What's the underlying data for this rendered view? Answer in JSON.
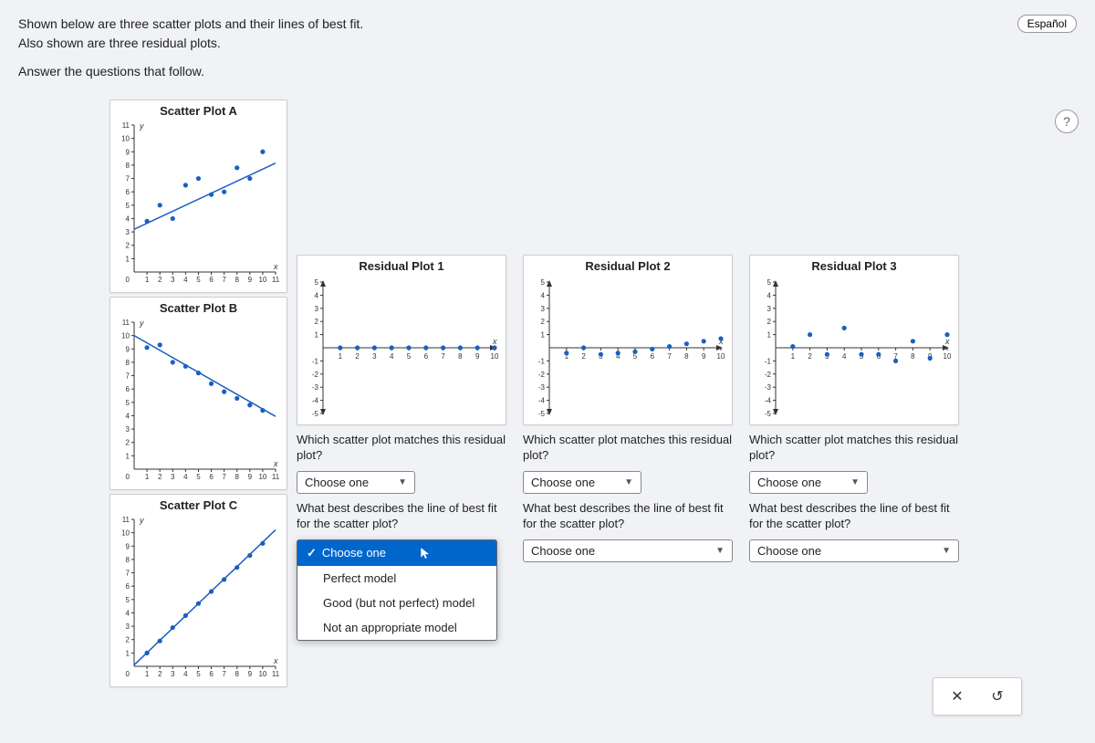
{
  "header": {
    "line1": "Shown below are three scatter plots and their lines of best fit.",
    "line2": "Also shown are three residual plots.",
    "line3": "Answer the questions that follow.",
    "espanol": "Español",
    "help": "?"
  },
  "style": {
    "dot_color": "#1b5fbf",
    "dot_radius": 2.6,
    "line_color": "#1b5fbf",
    "axis_color": "#333333",
    "axis_fontsize": 8,
    "title_fontsize": 13,
    "grid_color": "#e9e9e9",
    "background": "#ffffff"
  },
  "scatter": {
    "A": {
      "title": "Scatter Plot A",
      "xlim": [
        0,
        11
      ],
      "ylim": [
        0,
        11
      ],
      "points": [
        [
          1,
          3.8
        ],
        [
          2,
          5.0
        ],
        [
          3,
          4.0
        ],
        [
          4,
          6.5
        ],
        [
          5,
          7.0
        ],
        [
          6,
          5.8
        ],
        [
          7,
          6.0
        ],
        [
          8,
          7.8
        ],
        [
          9,
          7.0
        ],
        [
          10,
          9.0
        ]
      ],
      "fit": {
        "m": 0.45,
        "b": 3.2
      }
    },
    "B": {
      "title": "Scatter Plot B",
      "xlim": [
        0,
        11
      ],
      "ylim": [
        0,
        11
      ],
      "points": [
        [
          1,
          9.1
        ],
        [
          2,
          9.3
        ],
        [
          3,
          8.0
        ],
        [
          4,
          7.7
        ],
        [
          5,
          7.2
        ],
        [
          6,
          6.4
        ],
        [
          7,
          5.8
        ],
        [
          8,
          5.3
        ],
        [
          9,
          4.8
        ],
        [
          10,
          4.4
        ]
      ],
      "fit": {
        "m": -0.55,
        "b": 10.0
      }
    },
    "C": {
      "title": "Scatter Plot C",
      "xlim": [
        0,
        11
      ],
      "ylim": [
        0,
        11
      ],
      "points": [
        [
          1,
          1.0
        ],
        [
          2,
          1.9
        ],
        [
          3,
          2.9
        ],
        [
          4,
          3.8
        ],
        [
          5,
          4.7
        ],
        [
          6,
          5.6
        ],
        [
          7,
          6.5
        ],
        [
          8,
          7.4
        ],
        [
          9,
          8.3
        ],
        [
          10,
          9.2
        ]
      ],
      "fit": {
        "m": 0.92,
        "b": 0.1
      }
    }
  },
  "residual": {
    "xlim": [
      0,
      10
    ],
    "ylim": [
      -5,
      5
    ],
    "R1": {
      "title": "Residual Plot 1",
      "points": [
        [
          1,
          0.0
        ],
        [
          2,
          0.0
        ],
        [
          3,
          0.0
        ],
        [
          4,
          0.0
        ],
        [
          5,
          0.0
        ],
        [
          6,
          0.0
        ],
        [
          7,
          0.0
        ],
        [
          8,
          0.0
        ],
        [
          9,
          0.0
        ],
        [
          10,
          0.0
        ]
      ]
    },
    "R2": {
      "title": "Residual Plot 2",
      "points": [
        [
          1,
          -0.4
        ],
        [
          2,
          0.0
        ],
        [
          3,
          -0.5
        ],
        [
          4,
          -0.4
        ],
        [
          5,
          -0.3
        ],
        [
          6,
          -0.1
        ],
        [
          7,
          0.1
        ],
        [
          8,
          0.3
        ],
        [
          9,
          0.5
        ],
        [
          10,
          0.7
        ]
      ]
    },
    "R3": {
      "title": "Residual Plot 3",
      "points": [
        [
          1,
          0.1
        ],
        [
          2,
          1.0
        ],
        [
          3,
          -0.5
        ],
        [
          4,
          1.5
        ],
        [
          5,
          -0.5
        ],
        [
          6,
          -0.5
        ],
        [
          7,
          -1.0
        ],
        [
          8,
          0.5
        ],
        [
          9,
          -0.8
        ],
        [
          10,
          1.0
        ]
      ]
    }
  },
  "questions": {
    "match": "Which scatter plot matches this residual plot?",
    "describe": "What best describes the line of best fit for the scatter plot?",
    "choose": "Choose one"
  },
  "dropdown": {
    "selected": "Choose one",
    "options": [
      "Perfect model",
      "Good (but not perfect) model",
      "Not an appropriate model"
    ]
  },
  "actions": {
    "close": "✕",
    "reset": "↺"
  }
}
